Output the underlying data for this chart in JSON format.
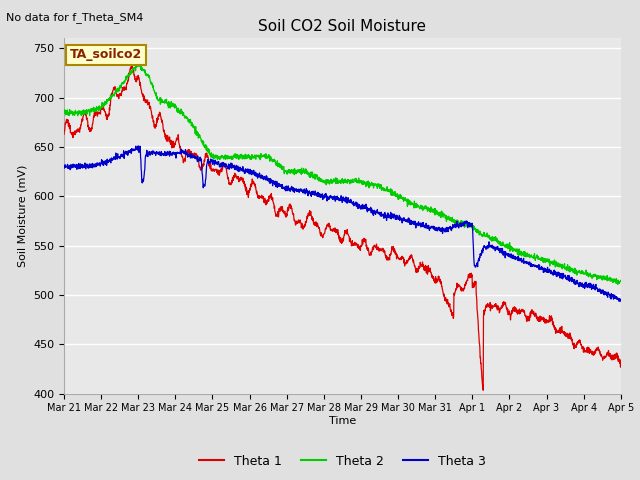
{
  "title": "Soil CO2 Soil Moisture",
  "top_left_text": "No data for f_Theta_SM4",
  "annotation_box": "TA_soilco2",
  "ylabel": "Soil Moisture (mV)",
  "xlabel": "Time",
  "ylim": [
    400,
    760
  ],
  "yticks": [
    400,
    450,
    500,
    550,
    600,
    650,
    700,
    750
  ],
  "fig_bg": "#e0e0e0",
  "plot_bg": "#e8e8e8",
  "grid_color": "white",
  "legend_labels": [
    "Theta 1",
    "Theta 2",
    "Theta 3"
  ],
  "line_colors": {
    "theta1": "#dd0000",
    "theta2": "#00cc00",
    "theta3": "#0000cc"
  },
  "x_tick_labels": [
    "Mar 21",
    "Mar 22",
    "Mar 23",
    "Mar 24",
    "Mar 25",
    "Mar 26",
    "Mar 27",
    "Mar 28",
    "Mar 29",
    "Mar 30",
    "Mar 31",
    "Apr 1",
    "Apr 2",
    "Apr 3",
    "Apr 4",
    "Apr 5"
  ],
  "num_days": 15
}
